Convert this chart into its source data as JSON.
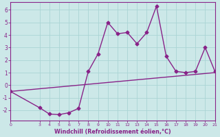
{
  "xlabel": "Windchill (Refroidissement éolien,°C)",
  "bg_color": "#cce8e8",
  "grid_color": "#aad4d4",
  "line_color": "#882288",
  "xlim": [
    0,
    21
  ],
  "ylim": [
    -2.8,
    6.6
  ],
  "yticks": [
    -2,
    -1,
    0,
    1,
    2,
    3,
    4,
    5,
    6
  ],
  "xticks": [
    0,
    3,
    4,
    5,
    6,
    7,
    8,
    9,
    10,
    11,
    12,
    13,
    14,
    15,
    16,
    17,
    18,
    19,
    20,
    21
  ],
  "curve1_x": [
    0,
    3,
    4,
    5,
    6,
    7,
    8,
    9,
    10,
    11,
    12,
    13,
    14,
    15,
    16,
    17,
    18,
    19,
    20,
    21
  ],
  "curve1_y": [
    -0.5,
    -1.8,
    -2.3,
    -2.35,
    -2.2,
    -1.85,
    1.1,
    2.5,
    5.0,
    4.1,
    4.2,
    3.3,
    4.2,
    6.3,
    2.3,
    1.1,
    1.0,
    1.1,
    3.0,
    1.1
  ],
  "curve2_x": [
    0,
    21
  ],
  "curve2_y": [
    -0.5,
    1.0
  ],
  "markersize": 2.5,
  "linewidth": 1.0
}
